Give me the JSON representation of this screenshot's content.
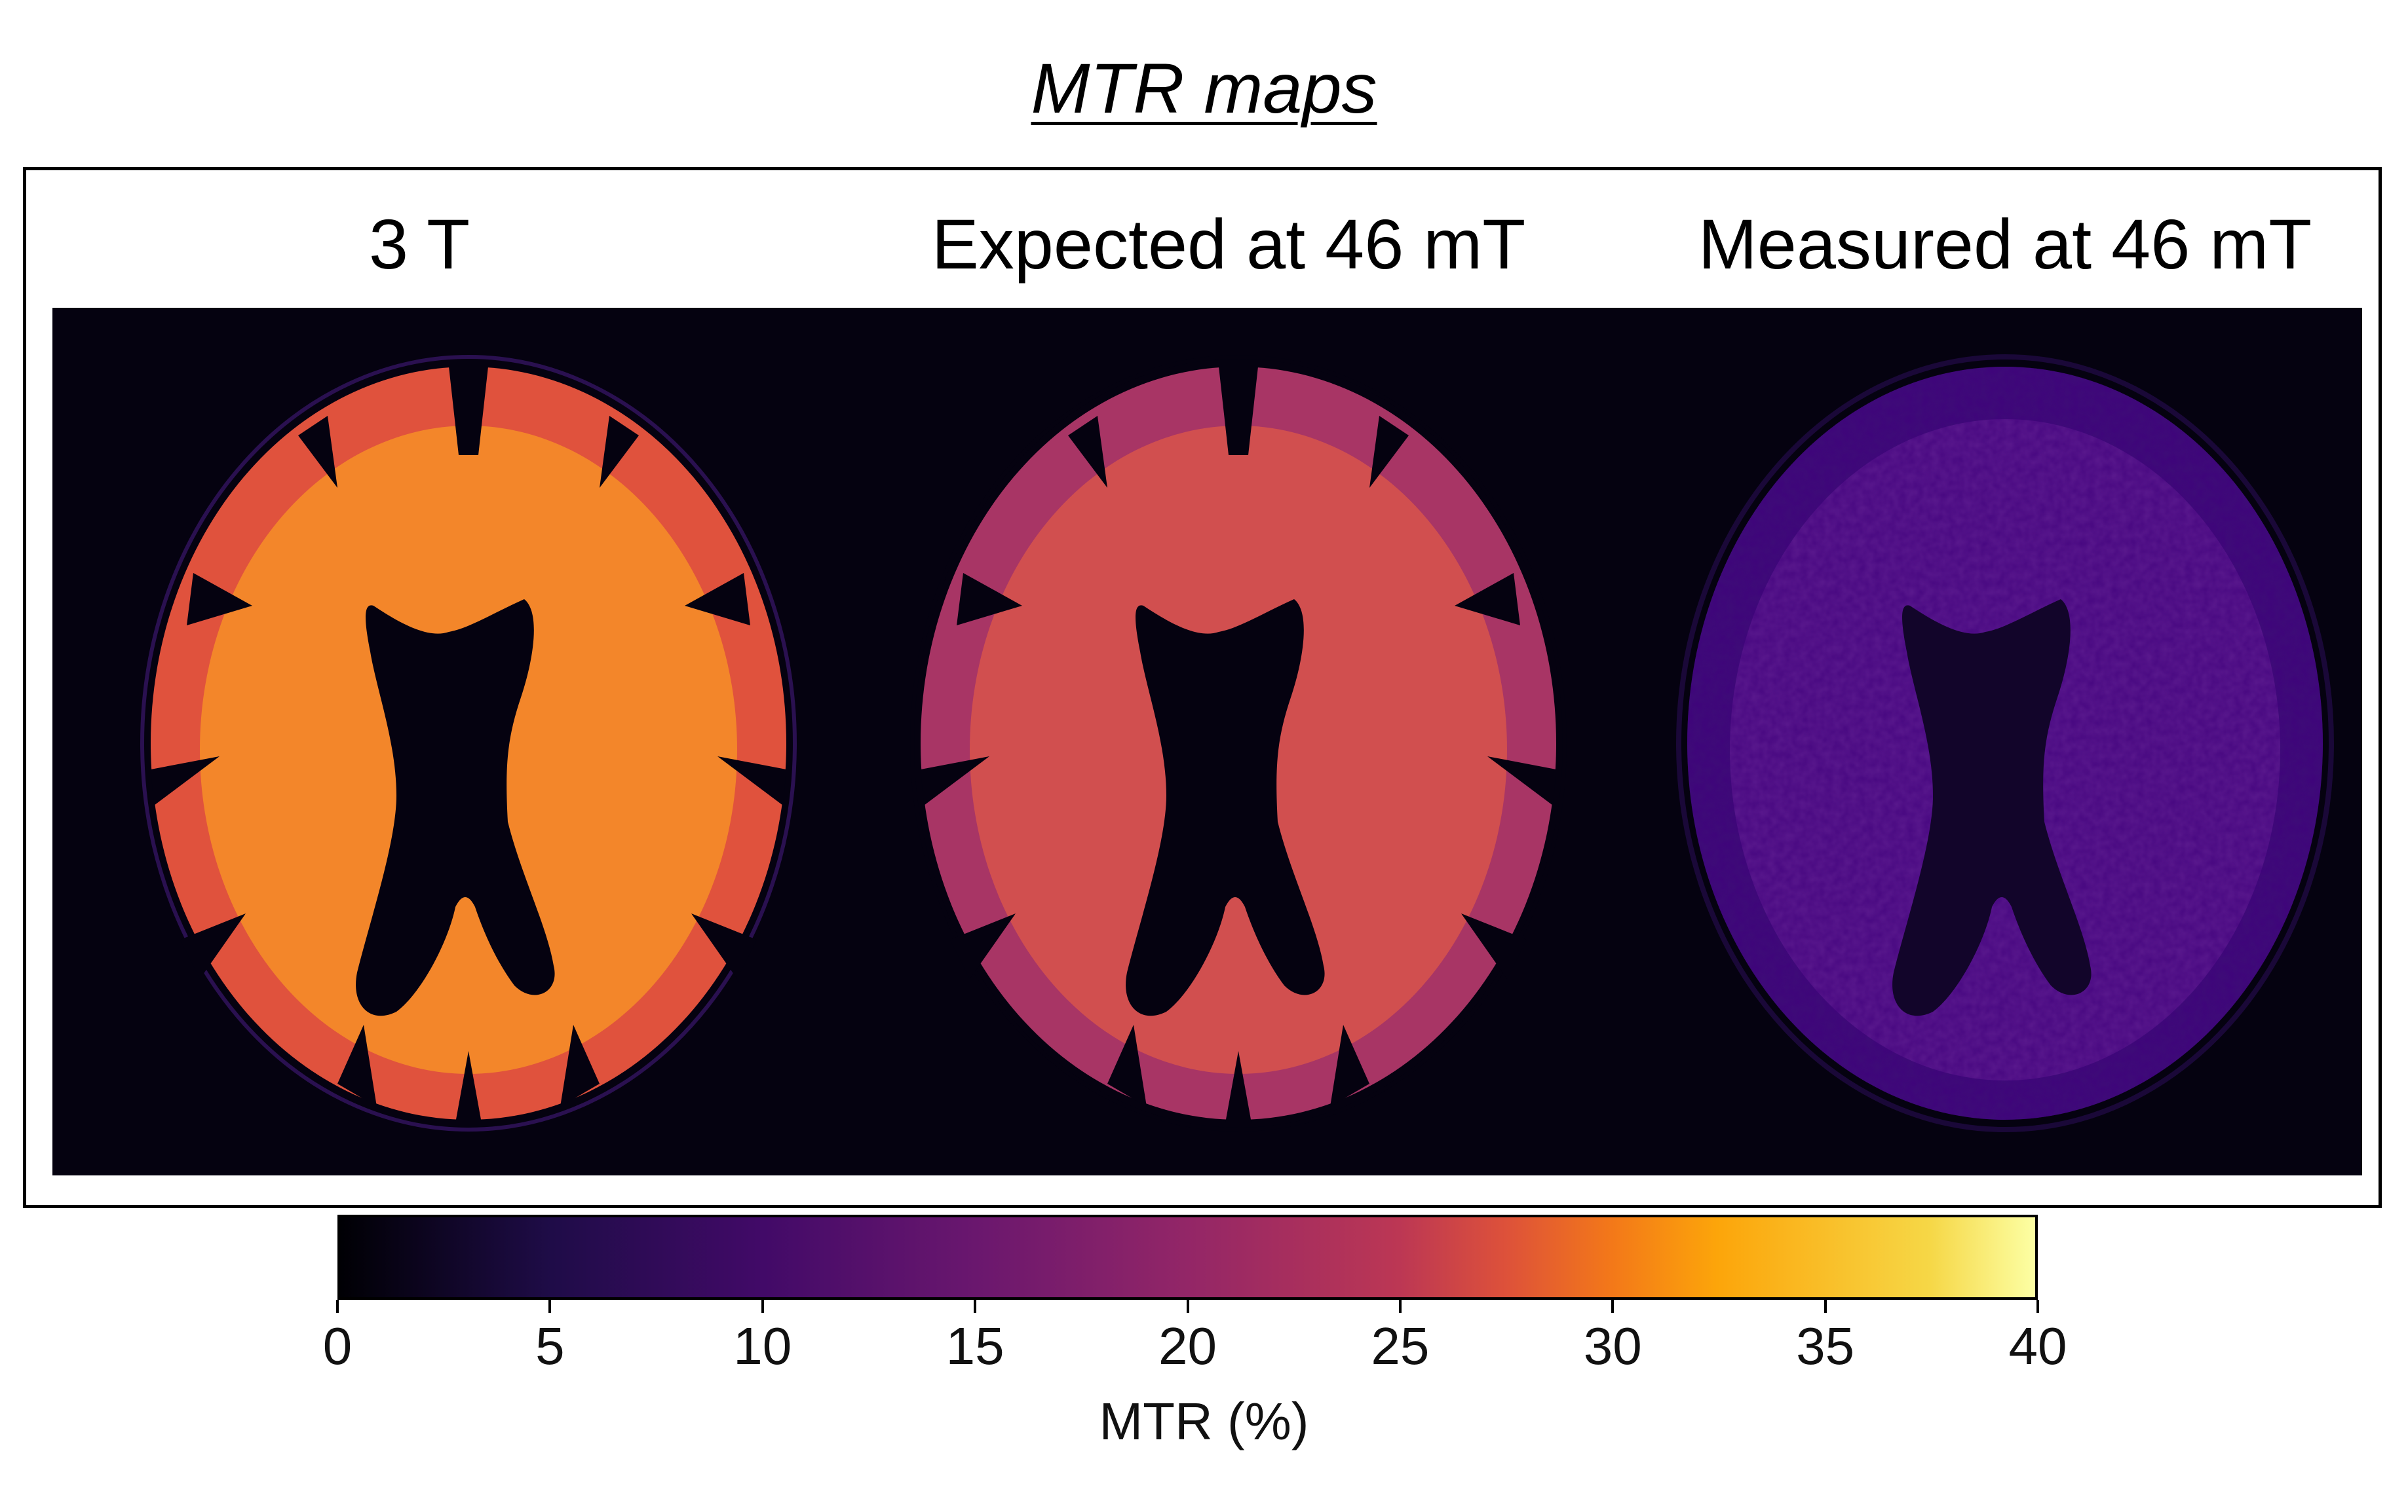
{
  "figure": {
    "title": "MTR maps",
    "panels": [
      {
        "label": "3 T",
        "intensity": "high",
        "colors": {
          "gm": "#e0523d",
          "wm": "#f3862a",
          "fill": "#f08624"
        }
      },
      {
        "label": "Expected at 46 mT",
        "intensity": "medium",
        "colors": {
          "gm": "#a83565",
          "wm": "#d14f4f",
          "fill": "#cf4d4f"
        }
      },
      {
        "label": "Measured at 46 mT",
        "intensity": "low",
        "colors": {
          "gm": "#3e0d78",
          "wm": "#5b1a8e",
          "fill": "#4c1584"
        }
      }
    ],
    "background_color": "#050210",
    "colorbar": {
      "label": "MTR (%)",
      "colormap": "inferno",
      "min": 0,
      "max": 40,
      "ticks": [
        "0",
        "5",
        "10",
        "15",
        "20",
        "25",
        "30",
        "35",
        "40"
      ]
    }
  }
}
